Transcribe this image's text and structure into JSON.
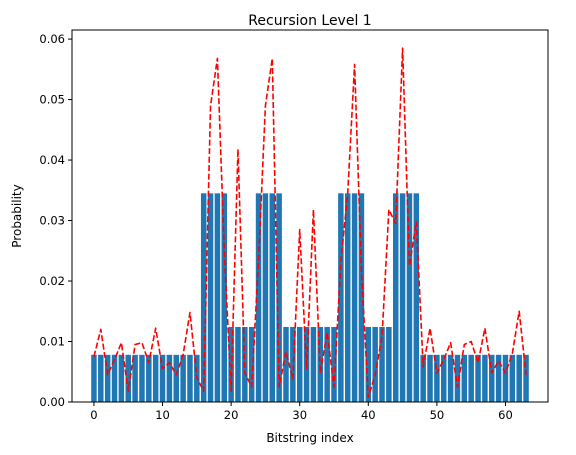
{
  "chart_data": {
    "type": "bar",
    "title": "Recursion Level 1",
    "xlabel": "Bitstring index",
    "ylabel": "Probability",
    "xlim": [
      -3.2,
      66.2
    ],
    "ylim": [
      0,
      0.0615
    ],
    "x_ticks": [
      0,
      10,
      20,
      30,
      40,
      50,
      60
    ],
    "y_ticks": [
      0.0,
      0.01,
      0.02,
      0.03,
      0.04,
      0.05,
      0.06
    ],
    "x_tick_labels": [
      "0",
      "10",
      "20",
      "30",
      "40",
      "50",
      "60"
    ],
    "y_tick_labels": [
      "0.00",
      "0.01",
      "0.02",
      "0.03",
      "0.04",
      "0.05",
      "0.06"
    ],
    "grid": false,
    "categories": [
      0,
      1,
      2,
      3,
      4,
      5,
      6,
      7,
      8,
      9,
      10,
      11,
      12,
      13,
      14,
      15,
      16,
      17,
      18,
      19,
      20,
      21,
      22,
      23,
      24,
      25,
      26,
      27,
      28,
      29,
      30,
      31,
      32,
      33,
      34,
      35,
      36,
      37,
      38,
      39,
      40,
      41,
      42,
      43,
      44,
      45,
      46,
      47,
      48,
      49,
      50,
      51,
      52,
      53,
      54,
      55,
      56,
      57,
      58,
      59,
      60,
      61,
      62,
      63
    ],
    "series": [
      {
        "kind": "bar",
        "color": "#1f77b4",
        "values": [
          0.0078,
          0.0078,
          0.0078,
          0.0078,
          0.0078,
          0.0078,
          0.0078,
          0.0078,
          0.0078,
          0.0078,
          0.0078,
          0.0078,
          0.0078,
          0.0078,
          0.0078,
          0.0078,
          0.0345,
          0.0345,
          0.0345,
          0.0345,
          0.0124,
          0.0124,
          0.0124,
          0.0124,
          0.0345,
          0.0345,
          0.0345,
          0.0345,
          0.0124,
          0.0124,
          0.0124,
          0.0124,
          0.0124,
          0.0124,
          0.0124,
          0.0124,
          0.0345,
          0.0345,
          0.0345,
          0.0345,
          0.0124,
          0.0124,
          0.0124,
          0.0124,
          0.0345,
          0.0345,
          0.0345,
          0.0345,
          0.0078,
          0.0078,
          0.0078,
          0.0078,
          0.0078,
          0.0078,
          0.0078,
          0.0078,
          0.0078,
          0.0078,
          0.0078,
          0.0078,
          0.0078,
          0.0078,
          0.0078,
          0.0078
        ]
      },
      {
        "kind": "line",
        "style": "dashed",
        "color": "#ff0000",
        "values": [
          0.0075,
          0.012,
          0.0045,
          0.007,
          0.0098,
          0.0018,
          0.0095,
          0.0098,
          0.0065,
          0.0122,
          0.0055,
          0.0065,
          0.0045,
          0.0078,
          0.0148,
          0.004,
          0.0018,
          0.049,
          0.0568,
          0.025,
          0.0018,
          0.0418,
          0.0048,
          0.0025,
          0.0235,
          0.049,
          0.0568,
          0.0025,
          0.0083,
          0.0038,
          0.0285,
          0.0055,
          0.0318,
          0.0048,
          0.0115,
          0.0025,
          0.0232,
          0.0345,
          0.0558,
          0.0215,
          0.0008,
          0.0045,
          0.0108,
          0.0318,
          0.0295,
          0.0585,
          0.0225,
          0.0298,
          0.0058,
          0.0122,
          0.0048,
          0.007,
          0.0098,
          0.0025,
          0.0095,
          0.01,
          0.0065,
          0.0122,
          0.0048,
          0.0068,
          0.0048,
          0.008,
          0.015,
          0.0045
        ]
      }
    ]
  }
}
